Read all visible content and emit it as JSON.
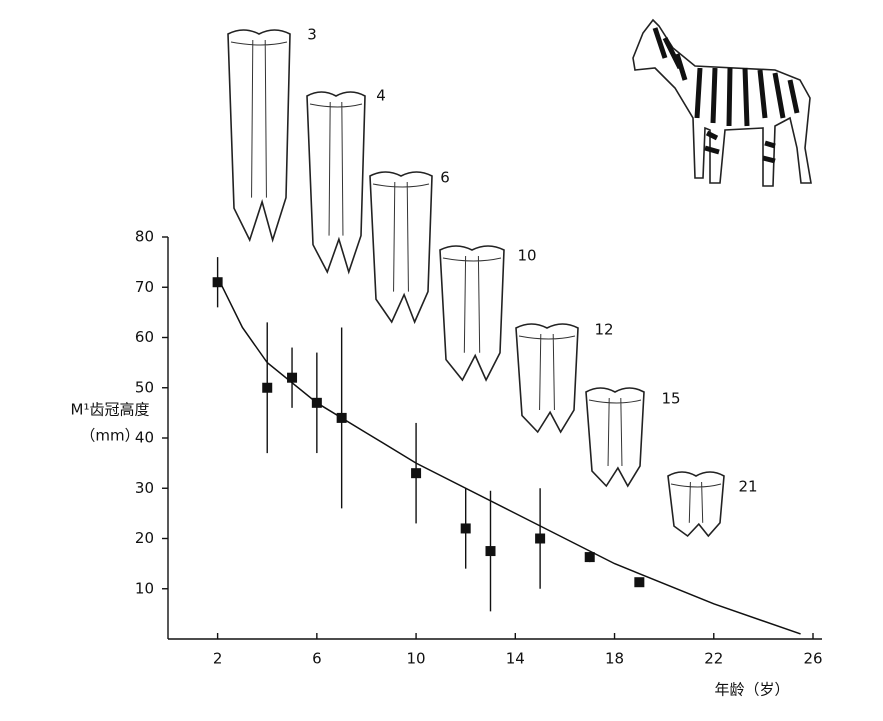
{
  "chart_data": {
    "type": "scatter",
    "y_label": "M¹齿冠高度",
    "y_unit": "（mm）",
    "x_label": "年龄（岁）",
    "xlim": [
      0,
      26
    ],
    "ylim": [
      0,
      80
    ],
    "xticks": [
      2,
      6,
      10,
      14,
      18,
      22,
      26
    ],
    "yticks": [
      10,
      20,
      30,
      40,
      50,
      60,
      70,
      80
    ],
    "series": [
      {
        "color": "#111111",
        "x": [
          2,
          4,
          5,
          6,
          7,
          10,
          12,
          13,
          15,
          17,
          19
        ],
        "values": [
          71,
          50,
          52,
          47,
          44,
          33,
          22,
          17.5,
          20,
          16.3,
          11.3
        ],
        "errors": [
          5,
          13,
          6,
          10,
          18,
          10,
          8,
          12,
          10,
          1,
          null
        ]
      }
    ],
    "curve": {
      "color": "#111111",
      "x": [
        2,
        3,
        4,
        6,
        8,
        10,
        14,
        18,
        22,
        25.5
      ],
      "values": [
        72,
        62,
        55,
        47,
        41,
        35,
        25,
        15,
        7,
        1
      ]
    },
    "tooth_labels": [
      "3",
      "4",
      "6",
      "10",
      "12",
      "15",
      "21"
    ]
  }
}
